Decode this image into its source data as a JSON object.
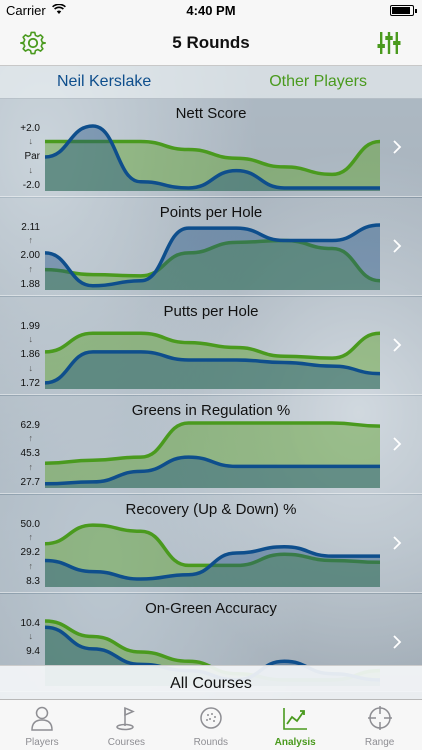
{
  "status_bar": {
    "carrier": "Carrier",
    "time": "4:40 PM"
  },
  "nav": {
    "title": "5 Rounds",
    "left_icon": "gear-icon",
    "right_icon": "sliders-icon"
  },
  "players": {
    "primary": "Neil Kerslake",
    "secondary": "Other Players"
  },
  "colors": {
    "primary": "#0e4e8c",
    "secondary": "#4a9a1e",
    "primary_fill": "rgba(30,80,130,0.42)",
    "secondary_fill": "rgba(90,160,40,0.45)"
  },
  "chart_data": [
    {
      "type": "area",
      "title": "Nett Score",
      "axis": {
        "top": "+2.0",
        "mid": "Par",
        "bottom": "-2.0",
        "arrow_up": "↓",
        "arrow_down": "↓"
      },
      "ylim": [
        0,
        1
      ],
      "series": [
        {
          "values": [
            0.75,
            0.75,
            0.75,
            0.62,
            0.48,
            0.34,
            0.22,
            0.75
          ]
        },
        {
          "values": [
            0.5,
            1.0,
            0.1,
            0.0,
            0.28,
            0.0,
            0.0,
            0.0
          ]
        }
      ]
    },
    {
      "type": "area",
      "title": "Points per Hole",
      "axis": {
        "top": "2.11",
        "mid": "2.00",
        "bottom": "1.88",
        "arrow_up": "↑",
        "arrow_down": "↑"
      },
      "ylim": [
        0,
        1
      ],
      "series": [
        {
          "values": [
            0.28,
            0.2,
            0.18,
            0.55,
            0.72,
            0.75,
            0.62,
            0.1
          ]
        },
        {
          "values": [
            0.55,
            0.02,
            0.1,
            0.95,
            0.95,
            0.75,
            0.75,
            1.0
          ]
        }
      ]
    },
    {
      "type": "area",
      "title": "Putts per Hole",
      "axis": {
        "top": "1.99",
        "mid": "1.86",
        "bottom": "1.72",
        "arrow_up": "↓",
        "arrow_down": "↓"
      },
      "ylim": [
        0,
        1
      ],
      "series": [
        {
          "values": [
            0.55,
            0.85,
            0.85,
            0.7,
            0.62,
            0.48,
            0.45,
            0.85
          ]
        },
        {
          "values": [
            0.05,
            0.55,
            0.55,
            0.42,
            0.42,
            0.38,
            0.32,
            0.2
          ]
        }
      ]
    },
    {
      "type": "area",
      "title": "Greens in Regulation %",
      "axis": {
        "top": "62.9",
        "mid": "45.3",
        "bottom": "27.7",
        "arrow_up": "↑",
        "arrow_down": "↑"
      },
      "ylim": [
        0,
        1
      ],
      "series": [
        {
          "values": [
            0.35,
            0.4,
            0.45,
            1.0,
            1.0,
            1.0,
            1.0,
            0.95
          ]
        },
        {
          "values": [
            0.02,
            0.05,
            0.22,
            0.45,
            0.3,
            0.3,
            0.3,
            0.3
          ]
        }
      ]
    },
    {
      "type": "area",
      "title": "Recovery (Up & Down) %",
      "axis": {
        "top": "50.0",
        "mid": "29.2",
        "bottom": "8.3",
        "arrow_up": "↑",
        "arrow_down": "↑"
      },
      "ylim": [
        0,
        1
      ],
      "series": [
        {
          "values": [
            0.65,
            0.95,
            0.85,
            0.3,
            0.3,
            0.48,
            0.38,
            0.35
          ]
        },
        {
          "values": [
            0.38,
            0.2,
            0.08,
            0.15,
            0.5,
            0.6,
            0.45,
            0.45
          ]
        }
      ]
    },
    {
      "type": "area",
      "title": "On-Green Accuracy",
      "axis": {
        "top": "10.4",
        "mid": "9.4",
        "bottom": "",
        "arrow_up": "↓",
        "arrow_down": ""
      },
      "ylim": [
        0,
        1
      ],
      "series": [
        {
          "values": [
            1.0,
            0.75,
            0.5,
            0.35,
            0.15,
            0.05,
            0.05,
            0.2
          ]
        },
        {
          "values": [
            0.9,
            0.55,
            0.3,
            0.2,
            0.05,
            0.35,
            0.15,
            0.05
          ]
        }
      ]
    }
  ],
  "filter": {
    "label": "All Courses"
  },
  "tabs": [
    {
      "label": "Players",
      "icon": "person-icon",
      "active": false
    },
    {
      "label": "Courses",
      "icon": "golf-flag-icon",
      "active": false
    },
    {
      "label": "Rounds",
      "icon": "golf-ball-icon",
      "active": false
    },
    {
      "label": "Analysis",
      "icon": "chart-icon",
      "active": true
    },
    {
      "label": "Range",
      "icon": "crosshair-icon",
      "active": false
    }
  ]
}
